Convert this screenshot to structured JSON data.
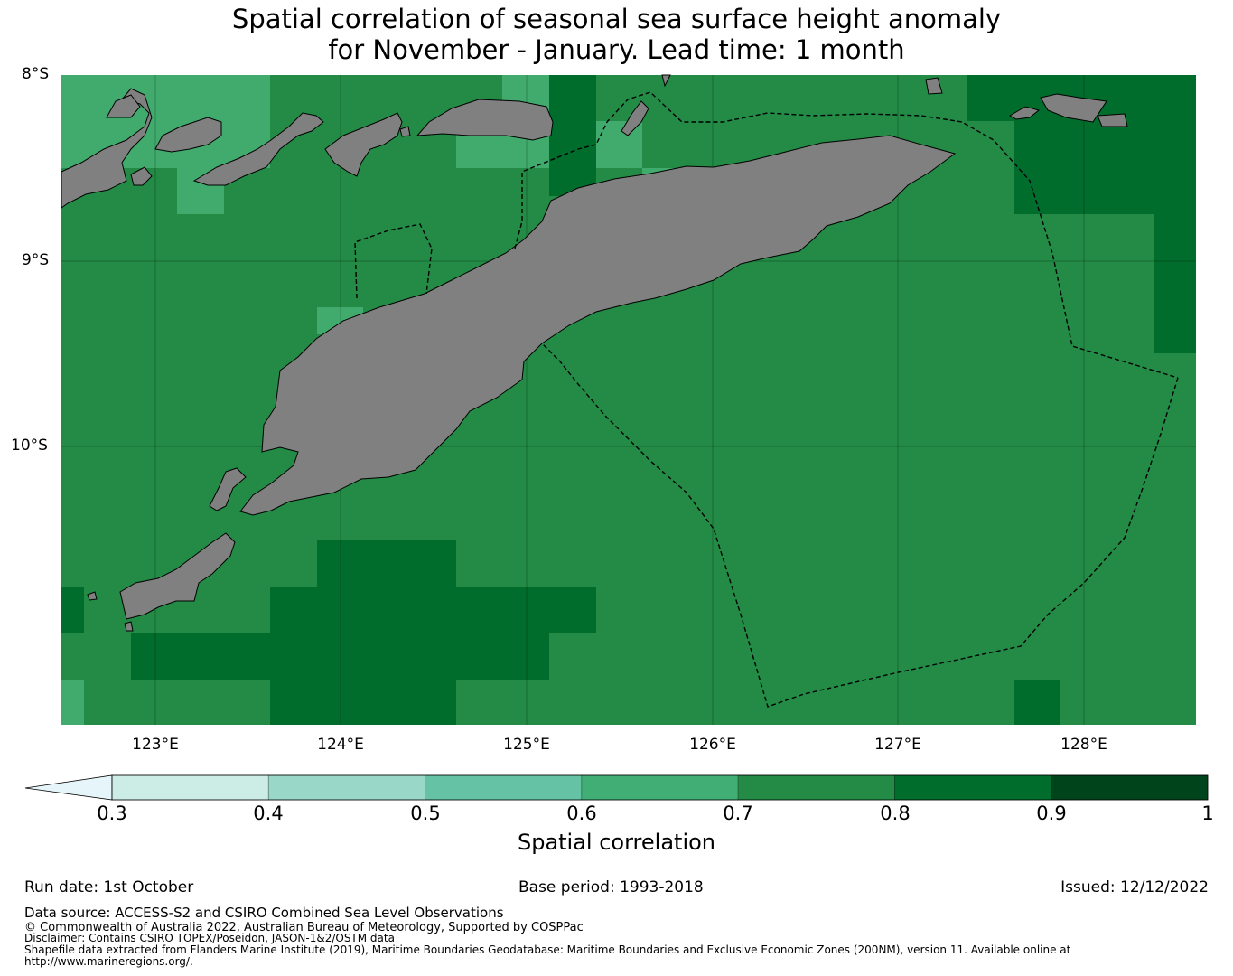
{
  "title": {
    "line1": "Spatial correlation of seasonal sea surface height anomaly",
    "line2": "for November - January. Lead time: 1 month"
  },
  "map": {
    "lat_labels": [
      "8°S",
      "9°S",
      "10°S"
    ],
    "lon_labels": [
      "123°E",
      "124°E",
      "125°E",
      "126°E",
      "127°E",
      "128°E"
    ],
    "lat_range": [
      -11.5,
      -8.0
    ],
    "lon_range": [
      122.5,
      128.6
    ],
    "ocean_colors": {
      "0.6-0.7": "#41ab6e",
      "0.7-0.8": "#238b45",
      "0.8-0.9": "#006d2c"
    },
    "land_color": "#808080",
    "eez_boundary": "dashed"
  },
  "colorbar": {
    "label": "Spatial correlation",
    "ticks": [
      "0.3",
      "0.4",
      "0.5",
      "0.6",
      "0.7",
      "0.8",
      "0.9",
      "1"
    ],
    "bins": [
      {
        "from": 0.3,
        "to": 0.4,
        "color": "#ccece6"
      },
      {
        "from": 0.4,
        "to": 0.5,
        "color": "#99d8c9"
      },
      {
        "from": 0.5,
        "to": 0.6,
        "color": "#66c2a4"
      },
      {
        "from": 0.6,
        "to": 0.7,
        "color": "#41ae76"
      },
      {
        "from": 0.7,
        "to": 0.8,
        "color": "#238b45"
      },
      {
        "from": 0.8,
        "to": 0.9,
        "color": "#006d2c"
      },
      {
        "from": 0.9,
        "to": 1.0,
        "color": "#00441b"
      }
    ],
    "under_color": "#e5f5f9"
  },
  "footer": {
    "run_date": "Run date: 1st October",
    "base_period": "Base period: 1993-2018",
    "issued": "Issued: 12/12/2022",
    "data_source": "Data source: ACCESS-S2 and CSIRO Combined Sea Level Observations",
    "copyright": "© Commonwealth of Australia 2022, Australian Bureau of Meteorology, Supported by COSPPac",
    "disclaimer": "Disclaimer: Contains CSIRO TOPEX/Poseidon, JASON-1&2/OSTM data",
    "shapefile": "Shapefile data extracted from Flanders Marine Institute (2019), Maritime Boundaries Geodatabase: Maritime Boundaries and Exclusive Economic Zones (200NM), version 11. Available online at",
    "url": "http://www.marineregions.org/."
  }
}
